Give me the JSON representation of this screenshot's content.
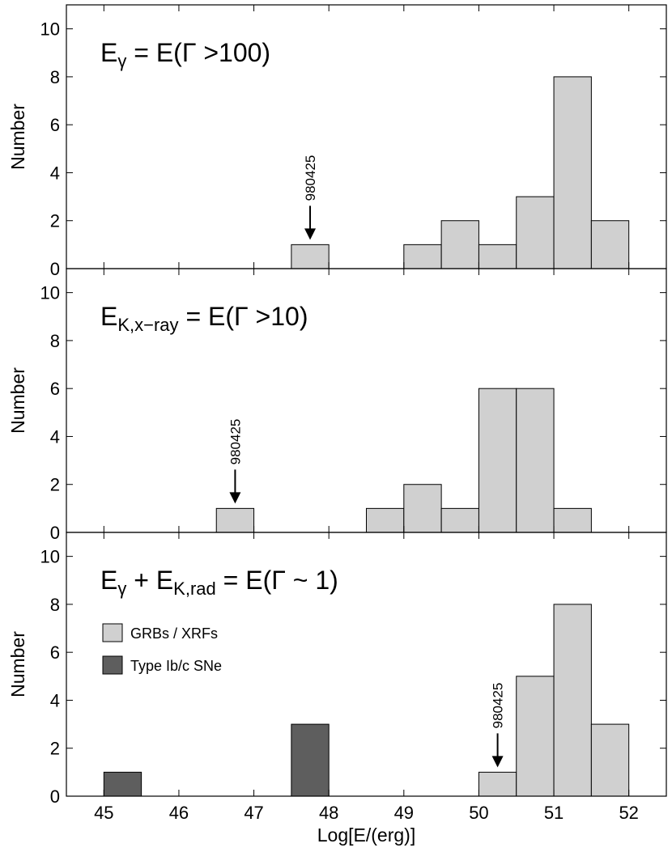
{
  "chart_data": [
    {
      "type": "bar",
      "ylabel": "Number",
      "ylim": [
        0,
        11
      ],
      "yticks": [
        0,
        2,
        4,
        6,
        8,
        10
      ],
      "label": {
        "main": "E",
        "sub": "γ",
        "rest": " = E(Γ >100)"
      },
      "bin_width": 0.5,
      "series": [
        {
          "name": "GRBs / XRFs",
          "bin_starts": [
            47.5,
            49.0,
            49.5,
            50.0,
            50.5,
            51.0,
            51.5
          ],
          "values": [
            1,
            1,
            2,
            1,
            3,
            8,
            2
          ]
        }
      ],
      "marker": {
        "text": "980425",
        "x": 47.75
      }
    },
    {
      "type": "bar",
      "ylabel": "Number",
      "ylim": [
        0,
        11
      ],
      "yticks": [
        0,
        2,
        4,
        6,
        8,
        10
      ],
      "label": {
        "main": "E",
        "sub": "K,x−ray",
        "rest": " = E(Γ >10)"
      },
      "bin_width": 0.5,
      "series": [
        {
          "name": "GRBs / XRFs",
          "bin_starts": [
            46.5,
            48.5,
            49.0,
            49.5,
            50.0,
            50.5,
            51.0
          ],
          "values": [
            1,
            1,
            2,
            1,
            6,
            6,
            1
          ]
        }
      ],
      "marker": {
        "text": "980425",
        "x": 46.75
      }
    },
    {
      "type": "bar",
      "ylabel": "Number",
      "xlabel": "Log[E/(erg)]",
      "ylim": [
        0,
        11
      ],
      "yticks": [
        0,
        2,
        4,
        6,
        8,
        10
      ],
      "xlim": [
        44.5,
        52.5
      ],
      "xticks": [
        45,
        46,
        47,
        48,
        49,
        50,
        51,
        52
      ],
      "label": {
        "main": "E",
        "sub": "γ",
        "mid": " + E",
        "sub2": "K,rad",
        "rest": " = E(Γ ~ 1)"
      },
      "bin_width": 0.5,
      "series": [
        {
          "name": "GRBs / XRFs",
          "bin_starts": [
            50.0,
            50.5,
            51.0,
            51.5
          ],
          "values": [
            1,
            5,
            8,
            3
          ]
        },
        {
          "name": "Type Ib/c SNe",
          "bin_starts": [
            45.0,
            47.5
          ],
          "values": [
            1,
            3
          ]
        }
      ],
      "marker": {
        "text": "980425",
        "x": 50.25
      },
      "legend": [
        "GRBs / XRFs",
        "Type Ib/c SNe"
      ]
    }
  ],
  "colors": {
    "grb": "#d0d0d0",
    "sn": "#5e5e5e"
  }
}
